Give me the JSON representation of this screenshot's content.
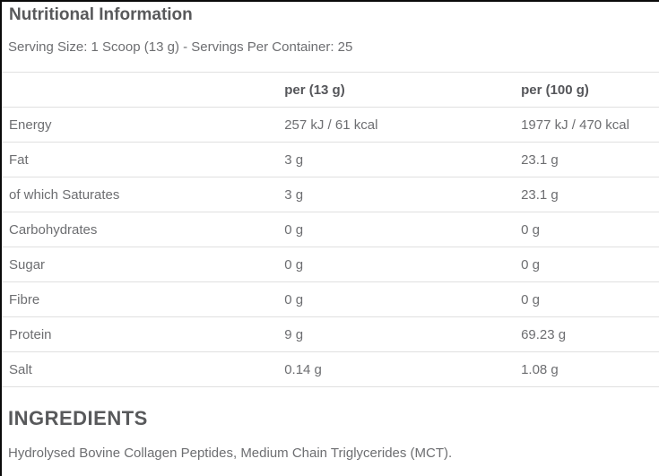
{
  "panel": {
    "title": "Nutritional Information",
    "serving_info": "Serving Size: 1 Scoop (13 g) - Servings Per Container: 25"
  },
  "table": {
    "columns": [
      "",
      "per (13 g)",
      "per (100 g)"
    ],
    "rows": [
      {
        "label": "Energy",
        "per_serving": "257 kJ / 61 kcal",
        "per_100g": "1977 kJ / 470 kcal"
      },
      {
        "label": "Fat",
        "per_serving": "3 g",
        "per_100g": "23.1 g"
      },
      {
        "label": "of which Saturates",
        "per_serving": "3 g",
        "per_100g": "23.1 g"
      },
      {
        "label": "Carbohydrates",
        "per_serving": "0 g",
        "per_100g": "0 g"
      },
      {
        "label": "Sugar",
        "per_serving": "0 g",
        "per_100g": "0 g"
      },
      {
        "label": "Fibre",
        "per_serving": "0 g",
        "per_100g": "0 g"
      },
      {
        "label": "Protein",
        "per_serving": "9 g",
        "per_100g": "69.23 g"
      },
      {
        "label": "Salt",
        "per_serving": "0.14 g",
        "per_100g": "1.08 g"
      }
    ]
  },
  "ingredients": {
    "heading": "INGREDIENTS",
    "text": "Hydrolysed Bovine Collagen Peptides, Medium Chain Triglycerides (MCT)."
  },
  "colors": {
    "heading_text": "#58595b",
    "body_text": "#6d6e71",
    "divider": "#e0e0e0",
    "edge_border": "#0a0a0a",
    "background": "#ffffff"
  }
}
